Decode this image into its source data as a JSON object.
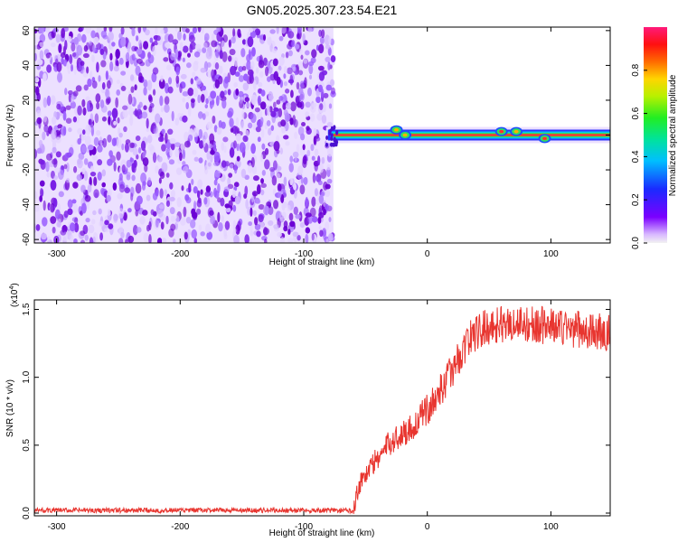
{
  "title": "GN05.2025.307.23.54.E21",
  "chart_data": [
    {
      "type": "heatmap",
      "xlabel": "Height of straight line (km)",
      "ylabel": "Frequency (Hz)",
      "xlim": [
        -318,
        148
      ],
      "ylim": [
        -62,
        62
      ],
      "x_ticks": [
        -300,
        -200,
        -100,
        0,
        100
      ],
      "y_ticks": [
        -60,
        -40,
        -20,
        0,
        20,
        40,
        60
      ],
      "noise_region_x": [
        -318,
        -76
      ],
      "carrier_region_x": [
        -76,
        148
      ],
      "carrier_frequency": 0,
      "carrier_features": [
        {
          "x": -25,
          "freq": 3,
          "amplitude": 0.9
        },
        {
          "x": -18,
          "freq": 0,
          "amplitude": 0.85
        },
        {
          "x": 60,
          "freq": 2,
          "amplitude": 0.8
        },
        {
          "x": 72,
          "freq": 2,
          "amplitude": 0.9
        },
        {
          "x": 95,
          "freq": -2,
          "amplitude": 0.6
        }
      ],
      "colorbar": {
        "label": "Normalized spectral amplitude",
        "range": [
          0,
          1
        ],
        "ticks": [
          0.0,
          0.2,
          0.4,
          0.6,
          0.8
        ]
      }
    },
    {
      "type": "line",
      "xlabel": "Height of straight line (km)",
      "ylabel": "SNR (10 * v/v)",
      "y_scale_label": "(x10",
      "y_scale_exponent": "4",
      "xlim": [
        -318,
        148
      ],
      "ylim": [
        -0.02,
        1.57
      ],
      "x_ticks": [
        -300,
        -200,
        -100,
        0,
        100
      ],
      "y_ticks": [
        0.0,
        0.5,
        1.0,
        1.5
      ],
      "color": "#e8352f",
      "series_profile": [
        {
          "x": -318,
          "y": 0.02
        },
        {
          "x": -120,
          "y": 0.02
        },
        {
          "x": -60,
          "y": 0.02
        },
        {
          "x": -55,
          "y": 0.22
        },
        {
          "x": -45,
          "y": 0.35
        },
        {
          "x": -30,
          "y": 0.52
        },
        {
          "x": -10,
          "y": 0.65
        },
        {
          "x": 5,
          "y": 0.82
        },
        {
          "x": 20,
          "y": 1.05
        },
        {
          "x": 35,
          "y": 1.3
        },
        {
          "x": 50,
          "y": 1.38
        },
        {
          "x": 70,
          "y": 1.4
        },
        {
          "x": 100,
          "y": 1.38
        },
        {
          "x": 148,
          "y": 1.32
        }
      ]
    }
  ]
}
